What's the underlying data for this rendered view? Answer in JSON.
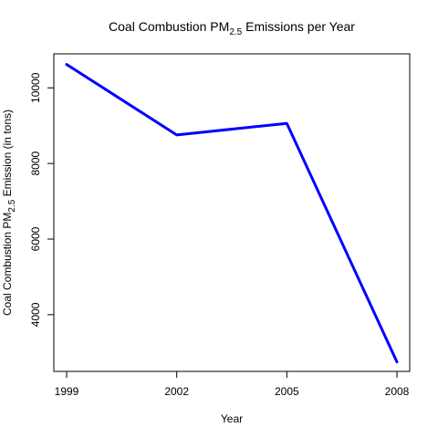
{
  "chart_data": {
    "type": "line",
    "title": {
      "prefix": "Coal Combustion PM",
      "subscript": "2.5",
      "suffix": " Emissions per Year"
    },
    "xlabel": "Year",
    "ylabel": {
      "prefix": "Coal Combustion PM",
      "subscript": "2.5",
      "suffix": " Emission (in tons)"
    },
    "x": [
      "1999",
      "2002",
      "2005",
      "2008"
    ],
    "series": [
      {
        "values": [
          10620,
          8755,
          9060,
          2750
        ],
        "color": "#0000ff"
      }
    ],
    "yticks": [
      4000,
      6000,
      8000,
      10000
    ],
    "ylim": [
      2500,
      10900
    ],
    "grid": false,
    "legend": "none",
    "box": true
  }
}
